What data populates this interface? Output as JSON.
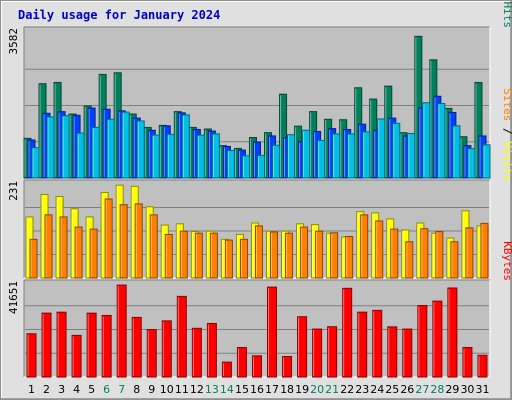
{
  "title": "Daily usage for January 2024",
  "chart_data": [
    {
      "type": "bar",
      "title": "Daily usage for January 2024",
      "ylabel": "Pages / Files / Hits",
      "ylabel_parts": [
        {
          "text": "Pages",
          "color": "#00c0e8"
        },
        {
          "text": " / ",
          "color": "#000000"
        },
        {
          "text": "Files",
          "color": "#0040ff"
        },
        {
          "text": " / ",
          "color": "#000000"
        },
        {
          "text": "Hits",
          "color": "#00805c"
        }
      ],
      "max_label": "3582",
      "ylim": [
        0,
        3582
      ],
      "categories": [
        "1",
        "2",
        "3",
        "4",
        "5",
        "6",
        "7",
        "8",
        "9",
        "10",
        "11",
        "12",
        "13",
        "14",
        "15",
        "16",
        "17",
        "18",
        "19",
        "20",
        "21",
        "22",
        "23",
        "24",
        "25",
        "26",
        "27",
        "28",
        "29",
        "30",
        "31"
      ],
      "weekend_days": [
        "6",
        "7",
        "13",
        "14",
        "20",
        "21",
        "27",
        "28"
      ],
      "series": [
        {
          "name": "Hits",
          "color": "#00805c",
          "values": [
            980,
            2330,
            2360,
            1580,
            1780,
            2560,
            2600,
            1580,
            1250,
            1300,
            1640,
            1250,
            1210,
            800,
            730,
            1000,
            1120,
            2070,
            1280,
            1640,
            1450,
            1440,
            2230,
            1950,
            2270,
            1120,
            3500,
            2920,
            1720,
            1020,
            2360
          ]
        },
        {
          "name": "Files",
          "color": "#0040ff",
          "values": [
            940,
            1600,
            1640,
            1550,
            1730,
            1700,
            1660,
            1480,
            1180,
            1290,
            1610,
            1200,
            1160,
            780,
            690,
            890,
            1040,
            1000,
            900,
            1150,
            1220,
            1200,
            1330,
            1180,
            1480,
            1040,
            1730,
            2020,
            1620,
            800,
            1040
          ]
        },
        {
          "name": "Pages",
          "color": "#00c0e8",
          "values": [
            750,
            1510,
            1540,
            1110,
            1250,
            1450,
            1630,
            1410,
            1060,
            1080,
            1560,
            1060,
            1090,
            680,
            550,
            560,
            810,
            1070,
            1180,
            930,
            1090,
            1090,
            1140,
            1460,
            1350,
            1100,
            1860,
            1840,
            1290,
            730,
            820
          ]
        }
      ]
    },
    {
      "type": "bar",
      "ylabel": "Sites / Visits",
      "ylabel_parts": [
        {
          "text": "Sites",
          "color": "#ff8000"
        },
        {
          "text": " / ",
          "color": "#000000"
        },
        {
          "text": "Visits",
          "color": "#ffff00"
        }
      ],
      "max_label": "231",
      "ylim": [
        0,
        231
      ],
      "categories": [
        "1",
        "2",
        "3",
        "4",
        "5",
        "6",
        "7",
        "8",
        "9",
        "10",
        "11",
        "12",
        "13",
        "14",
        "15",
        "16",
        "17",
        "18",
        "19",
        "20",
        "21",
        "22",
        "23",
        "24",
        "25",
        "26",
        "27",
        "28",
        "29",
        "30",
        "31"
      ],
      "weekend_days": [
        "6",
        "7",
        "13",
        "14",
        "20",
        "21",
        "27",
        "28"
      ],
      "series": [
        {
          "name": "Visits",
          "color": "#ffff00",
          "values": [
            150,
            205,
            200,
            170,
            150,
            210,
            228,
            225,
            175,
            130,
            133,
            114,
            115,
            95,
            107,
            135,
            115,
            115,
            133,
            131,
            110,
            101,
            163,
            160,
            145,
            118,
            135,
            110,
            98,
            165,
            128
          ]
        },
        {
          "name": "Sites",
          "color": "#ff8000",
          "values": [
            95,
            155,
            150,
            125,
            120,
            194,
            180,
            182,
            155,
            107,
            115,
            110,
            110,
            93,
            95,
            128,
            113,
            110,
            125,
            115,
            111,
            102,
            155,
            140,
            120,
            89,
            121,
            114,
            89,
            123,
            134
          ]
        }
      ]
    },
    {
      "type": "bar",
      "ylabel": "KBytes",
      "ylabel_parts": [
        {
          "text": "KBytes",
          "color": "#ff0000"
        }
      ],
      "max_label": "41651",
      "ylim": [
        0,
        41651
      ],
      "categories": [
        "1",
        "2",
        "3",
        "4",
        "5",
        "6",
        "7",
        "8",
        "9",
        "10",
        "11",
        "12",
        "13",
        "14",
        "15",
        "16",
        "17",
        "18",
        "19",
        "20",
        "21",
        "22",
        "23",
        "24",
        "25",
        "26",
        "27",
        "28",
        "29",
        "30",
        "31"
      ],
      "weekend_days": [
        "6",
        "7",
        "13",
        "14",
        "20",
        "21",
        "27",
        "28"
      ],
      "series": [
        {
          "name": "KBytes",
          "color": "#ff0000",
          "values": [
            18940,
            27980,
            28400,
            18240,
            27980,
            26970,
            40290,
            26120,
            20790,
            24590,
            35340,
            21340,
            23460,
            6520,
            12920,
            9280,
            39390,
            8980,
            26410,
            21000,
            22040,
            38840,
            28410,
            29200,
            21970,
            21000,
            31330,
            33250,
            39010,
            12920,
            9520
          ]
        }
      ]
    }
  ]
}
